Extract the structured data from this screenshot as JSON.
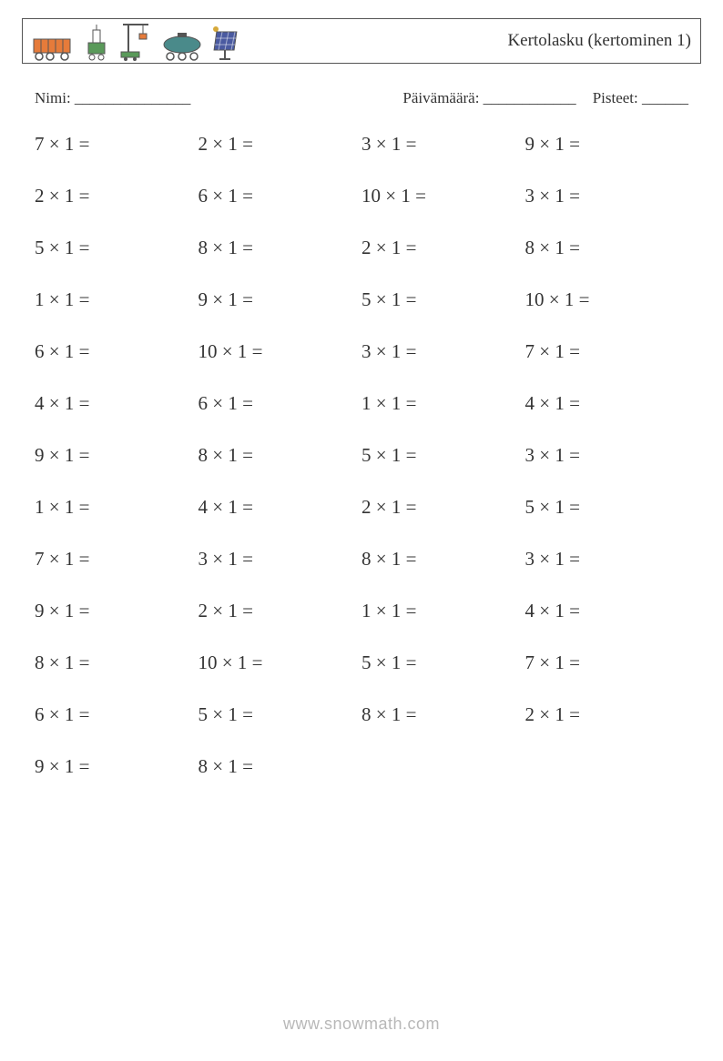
{
  "header": {
    "title": "Kertolasku (kertominen 1)",
    "icon_names": [
      "train-icon",
      "crane-small-icon",
      "crane-tall-icon",
      "tanker-icon",
      "solar-panel-icon"
    ],
    "icon_colors": {
      "orange": "#e67b3a",
      "green": "#5a9a5a",
      "dark": "#555555",
      "teal": "#4a8a8a",
      "yellow": "#d6a93a",
      "blue": "#4a5aa0"
    }
  },
  "meta": {
    "name_label": "Nimi: _______________",
    "date_label": "Päivämäärä: ____________",
    "score_label": "Pisteet: ______"
  },
  "style": {
    "font_family": "Georgia, serif",
    "text_color": "#333333",
    "background": "#ffffff",
    "border_color": "#555555",
    "problem_fontsize": 21,
    "title_fontsize": 19,
    "meta_fontsize": 17,
    "footer_color": "#b8b8b8",
    "columns": 4,
    "row_gap": 32,
    "operator": "×",
    "equals": "="
  },
  "problems": [
    [
      7,
      1
    ],
    [
      2,
      1
    ],
    [
      3,
      1
    ],
    [
      9,
      1
    ],
    [
      2,
      1
    ],
    [
      6,
      1
    ],
    [
      10,
      1
    ],
    [
      3,
      1
    ],
    [
      5,
      1
    ],
    [
      8,
      1
    ],
    [
      2,
      1
    ],
    [
      8,
      1
    ],
    [
      1,
      1
    ],
    [
      9,
      1
    ],
    [
      5,
      1
    ],
    [
      10,
      1
    ],
    [
      6,
      1
    ],
    [
      10,
      1
    ],
    [
      3,
      1
    ],
    [
      7,
      1
    ],
    [
      4,
      1
    ],
    [
      6,
      1
    ],
    [
      1,
      1
    ],
    [
      4,
      1
    ],
    [
      9,
      1
    ],
    [
      8,
      1
    ],
    [
      5,
      1
    ],
    [
      3,
      1
    ],
    [
      1,
      1
    ],
    [
      4,
      1
    ],
    [
      2,
      1
    ],
    [
      5,
      1
    ],
    [
      7,
      1
    ],
    [
      3,
      1
    ],
    [
      8,
      1
    ],
    [
      3,
      1
    ],
    [
      9,
      1
    ],
    [
      2,
      1
    ],
    [
      1,
      1
    ],
    [
      4,
      1
    ],
    [
      8,
      1
    ],
    [
      10,
      1
    ],
    [
      5,
      1
    ],
    [
      7,
      1
    ],
    [
      6,
      1
    ],
    [
      5,
      1
    ],
    [
      8,
      1
    ],
    [
      2,
      1
    ],
    [
      9,
      1
    ],
    [
      8,
      1
    ]
  ],
  "footer": {
    "text": "www.snowmath.com"
  }
}
